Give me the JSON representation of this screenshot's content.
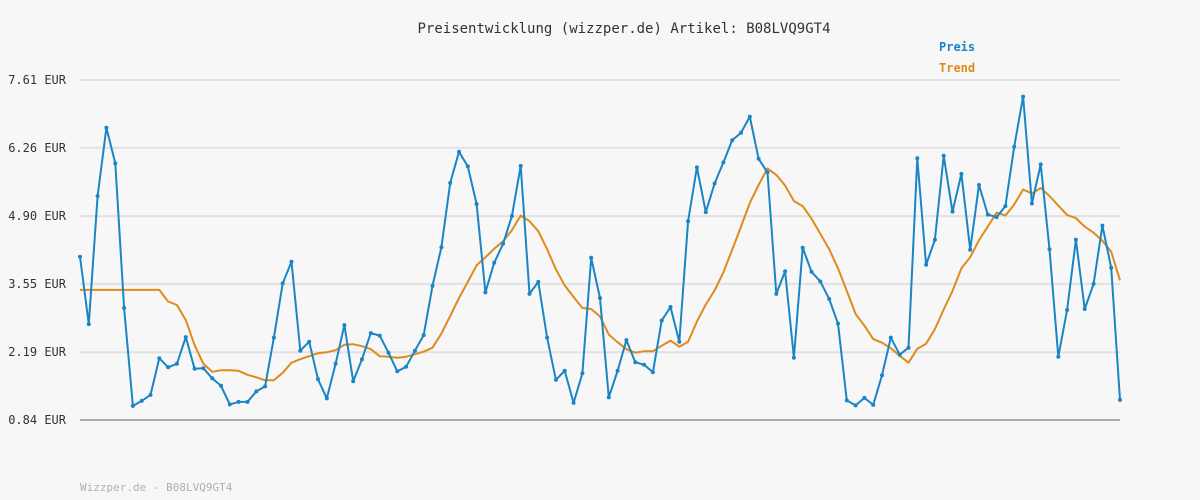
{
  "chart_data": {
    "type": "line",
    "title": "Preisentwicklung (wizzper.de) Artikel: B08LVQ9GT4",
    "ylim": [
      0.84,
      7.61
    ],
    "y_ticks": [
      "7.61 EUR",
      "6.26 EUR",
      "4.90 EUR",
      "3.55 EUR",
      "2.19 EUR",
      "0.84 EUR"
    ],
    "y_tick_values": [
      7.61,
      6.26,
      4.9,
      3.55,
      2.19,
      0.84
    ],
    "grid": true,
    "legend_position": "top-right",
    "series": [
      {
        "name": "Preis",
        "color": "#1a85c4",
        "values": [
          4.09,
          2.75,
          5.3,
          6.66,
          5.95,
          3.07,
          1.12,
          1.22,
          1.34,
          2.07,
          1.89,
          1.96,
          2.49,
          1.86,
          1.87,
          1.67,
          1.52,
          1.15,
          1.2,
          1.2,
          1.41,
          1.51,
          2.48,
          3.56,
          3.99,
          2.22,
          2.4,
          1.65,
          1.27,
          1.96,
          2.73,
          1.61,
          2.05,
          2.57,
          2.52,
          2.18,
          1.81,
          1.9,
          2.22,
          2.53,
          3.51,
          4.28,
          5.56,
          6.18,
          5.89,
          5.14,
          3.38,
          3.97,
          4.35,
          4.9,
          5.9,
          3.35,
          3.59,
          2.48,
          1.64,
          1.82,
          1.18,
          1.77,
          4.07,
          3.27,
          1.29,
          1.82,
          2.43,
          1.99,
          1.94,
          1.79,
          2.82,
          3.09,
          2.4,
          4.8,
          5.87,
          4.98,
          5.55,
          5.97,
          6.41,
          6.56,
          6.88,
          6.04,
          5.77,
          3.35,
          3.8,
          2.08,
          4.27,
          3.79,
          3.6,
          3.25,
          2.76,
          1.23,
          1.13,
          1.28,
          1.14,
          1.73,
          2.48,
          2.14,
          2.28,
          6.05,
          3.93,
          4.43,
          6.1,
          4.99,
          5.74,
          4.23,
          5.52,
          4.93,
          4.88,
          5.1,
          6.28,
          7.28,
          5.15,
          5.93,
          4.24,
          2.1,
          3.03,
          4.43,
          3.05,
          3.55,
          4.71,
          3.87,
          1.24
        ]
      },
      {
        "name": "Trend",
        "color": "#e08a1e",
        "values": [
          3.43,
          3.43,
          3.43,
          3.43,
          3.43,
          3.43,
          3.43,
          3.43,
          3.43,
          3.43,
          3.2,
          3.13,
          2.83,
          2.33,
          1.96,
          1.8,
          1.83,
          1.83,
          1.82,
          1.74,
          1.69,
          1.63,
          1.63,
          1.78,
          1.98,
          2.05,
          2.11,
          2.17,
          2.19,
          2.23,
          2.34,
          2.35,
          2.31,
          2.25,
          2.11,
          2.1,
          2.08,
          2.1,
          2.15,
          2.2,
          2.28,
          2.56,
          2.91,
          3.27,
          3.59,
          3.92,
          4.08,
          4.25,
          4.4,
          4.62,
          4.91,
          4.8,
          4.6,
          4.24,
          3.84,
          3.52,
          3.29,
          3.07,
          3.05,
          2.9,
          2.54,
          2.39,
          2.25,
          2.18,
          2.21,
          2.21,
          2.32,
          2.42,
          2.3,
          2.4,
          2.8,
          3.14,
          3.42,
          3.78,
          4.23,
          4.69,
          5.16,
          5.52,
          5.85,
          5.72,
          5.51,
          5.2,
          5.1,
          4.85,
          4.55,
          4.24,
          3.86,
          3.41,
          2.95,
          2.72,
          2.45,
          2.38,
          2.27,
          2.12,
          1.98,
          2.26,
          2.36,
          2.65,
          3.04,
          3.41,
          3.86,
          4.08,
          4.42,
          4.69,
          4.97,
          4.91,
          5.13,
          5.43,
          5.35,
          5.46,
          5.3,
          5.11,
          4.92,
          4.86,
          4.69,
          4.57,
          4.41,
          4.19,
          3.62
        ]
      }
    ],
    "footer": "Wizzper.de - B08LVQ9GT4"
  }
}
